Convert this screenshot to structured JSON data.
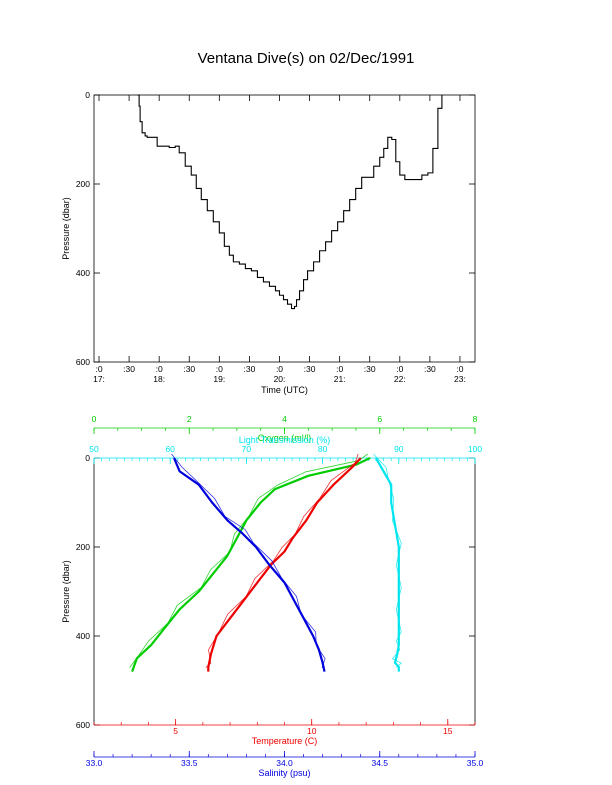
{
  "title": "Ventana Dive(s) on 02/Dec/1991",
  "colors": {
    "oxygen": "#00cc00",
    "light": "#00e5ee",
    "temperature": "#ee0000",
    "salinity": "#0000dd",
    "axis": "#000000"
  },
  "chart_data": [
    {
      "type": "line",
      "name": "dive-time-series",
      "xlabel": "Time (UTC)",
      "ylabel": "Pressure (dbar)",
      "x_ticks": [
        {
          "hm": "17:00",
          "top": ":0",
          "bottom": "17:"
        },
        {
          "hm": "17:30",
          "top": ":30",
          "bottom": ""
        },
        {
          "hm": "18:00",
          "top": ":0",
          "bottom": "18:"
        },
        {
          "hm": "18:30",
          "top": ":30",
          "bottom": ""
        },
        {
          "hm": "19:00",
          "top": ":0",
          "bottom": "19:"
        },
        {
          "hm": "19:30",
          "top": ":30",
          "bottom": ""
        },
        {
          "hm": "20:00",
          "top": ":0",
          "bottom": "20:"
        },
        {
          "hm": "20:30",
          "top": ":30",
          "bottom": ""
        },
        {
          "hm": "21:00",
          "top": ":0",
          "bottom": "21:"
        },
        {
          "hm": "21:30",
          "top": ":30",
          "bottom": ""
        },
        {
          "hm": "22:00",
          "top": ":0",
          "bottom": "22:"
        },
        {
          "hm": "22:30",
          "top": ":30",
          "bottom": ""
        },
        {
          "hm": "23:00",
          "top": ":0",
          "bottom": "23:"
        }
      ],
      "y_ticks": [
        "0",
        "200",
        "400",
        "600"
      ],
      "xlim": [
        "16:55",
        "23:15"
      ],
      "ylim": [
        600,
        0
      ],
      "series": [
        {
          "x": [
            "17:38",
            "17:40",
            "17:41",
            "17:43",
            "17:46",
            "17:48",
            "17:52",
            "17:58",
            "18:04",
            "18:10",
            "18:16",
            "18:20",
            "18:26",
            "18:32",
            "18:37",
            "18:42",
            "18:48",
            "18:54",
            "19:00",
            "19:05",
            "19:10",
            "19:14",
            "19:20",
            "19:26",
            "19:32",
            "19:38",
            "19:44",
            "19:50",
            "19:56",
            "20:00",
            "20:04",
            "20:08",
            "20:12",
            "20:15",
            "20:17",
            "20:20",
            "20:24",
            "20:28",
            "20:34",
            "20:40",
            "20:46",
            "20:52",
            "20:58",
            "21:04",
            "21:10",
            "21:16",
            "21:22",
            "21:28",
            "21:34",
            "21:40",
            "21:44",
            "21:48",
            "21:52",
            "21:56",
            "22:00",
            "22:05",
            "22:10",
            "22:16",
            "22:22",
            "22:28",
            "22:33",
            "22:38",
            "22:42"
          ],
          "y": [
            0,
            25,
            60,
            85,
            92,
            95,
            95,
            115,
            115,
            118,
            115,
            130,
            160,
            180,
            210,
            235,
            260,
            285,
            310,
            340,
            360,
            375,
            380,
            390,
            395,
            410,
            420,
            430,
            440,
            450,
            460,
            470,
            480,
            475,
            460,
            440,
            415,
            395,
            375,
            350,
            330,
            305,
            285,
            260,
            235,
            210,
            185,
            185,
            160,
            140,
            120,
            95,
            100,
            150,
            180,
            190,
            190,
            190,
            180,
            175,
            120,
            30,
            0
          ]
        }
      ]
    },
    {
      "type": "line",
      "name": "water-column-profiles",
      "ylabel": "Pressure (dbar)",
      "y_ticks": [
        "0",
        "200",
        "400",
        "600"
      ],
      "ylim": [
        600,
        0
      ],
      "axes": {
        "oxygen": {
          "label": "Oxygen (ml/l)",
          "range": [
            0,
            8
          ],
          "ticks": [
            "0",
            "2",
            "4",
            "6",
            "8"
          ]
        },
        "light": {
          "label": "Light Transmission (%)",
          "range": [
            50,
            100
          ],
          "ticks": [
            "50",
            "60",
            "70",
            "80",
            "90",
            "100"
          ]
        },
        "temperature": {
          "label": "Temperature (C)",
          "range": [
            2,
            16
          ],
          "ticks": [
            "5",
            "10",
            "15"
          ]
        },
        "salinity": {
          "label": "Salinity (psu)",
          "range": [
            33.0,
            35.0
          ],
          "ticks": [
            "33.0",
            "33.5",
            "34.0",
            "34.5",
            "35.0"
          ]
        }
      },
      "series": [
        {
          "name": "Oxygen",
          "axis": "oxygen",
          "x": [
            5.8,
            5.5,
            4.5,
            3.8,
            3.5,
            3.2,
            3.0,
            2.8,
            2.5,
            2.2,
            1.8,
            1.5,
            1.2,
            0.9,
            0.8
          ],
          "y": [
            0,
            15,
            40,
            70,
            100,
            140,
            180,
            220,
            260,
            300,
            340,
            380,
            420,
            450,
            480
          ]
        },
        {
          "name": "Light Transmission",
          "axis": "light",
          "x": [
            87,
            88,
            89,
            89,
            89.5,
            90,
            90,
            90,
            90,
            90,
            90,
            89.8,
            89.5,
            90,
            90
          ],
          "y": [
            0,
            30,
            60,
            100,
            150,
            200,
            250,
            300,
            350,
            400,
            420,
            440,
            460,
            470,
            480
          ]
        },
        {
          "name": "Temperature",
          "axis": "temperature",
          "x": [
            11.8,
            11.5,
            10.8,
            10.2,
            9.8,
            9.3,
            9.0,
            8.5,
            8.0,
            7.5,
            7.0,
            6.5,
            6.3,
            6.2,
            6.2
          ],
          "y": [
            0,
            20,
            60,
            100,
            140,
            180,
            210,
            240,
            280,
            320,
            360,
            400,
            440,
            470,
            480
          ]
        },
        {
          "name": "Salinity",
          "axis": "salinity",
          "x": [
            33.42,
            33.45,
            33.55,
            33.62,
            33.7,
            33.78,
            33.85,
            33.92,
            34.0,
            34.05,
            34.1,
            34.15,
            34.18,
            34.2,
            34.21
          ],
          "y": [
            0,
            30,
            60,
            100,
            140,
            170,
            200,
            240,
            280,
            320,
            360,
            400,
            430,
            460,
            480
          ]
        }
      ]
    }
  ]
}
